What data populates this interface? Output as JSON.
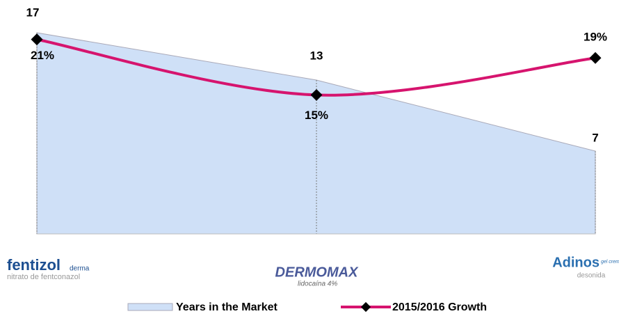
{
  "chart_data": {
    "type": "area-line",
    "categories": [
      "fentizol",
      "DERMOMAX",
      "Adinos"
    ],
    "category_details": [
      {
        "tag": "derma",
        "sub": "nitrato de fentconazol"
      },
      {
        "tag": "",
        "sub": "lidocaína 4%"
      },
      {
        "tag": "gel crema",
        "sub": "desonida"
      }
    ],
    "series": [
      {
        "name": "Years in the Market",
        "type": "area",
        "color": "#cfe0f7",
        "edge": "#a9a9b8",
        "values": [
          17,
          13,
          7
        ]
      },
      {
        "name": "2015/2016 Growth",
        "type": "line",
        "axis": "y2",
        "color": "#d6146e",
        "values": [
          21,
          15,
          19
        ],
        "value_labels": [
          "21%",
          "15%",
          "19%"
        ]
      }
    ],
    "ylim": [
      0,
      18
    ],
    "y2lim": [
      0,
      23
    ]
  }
}
